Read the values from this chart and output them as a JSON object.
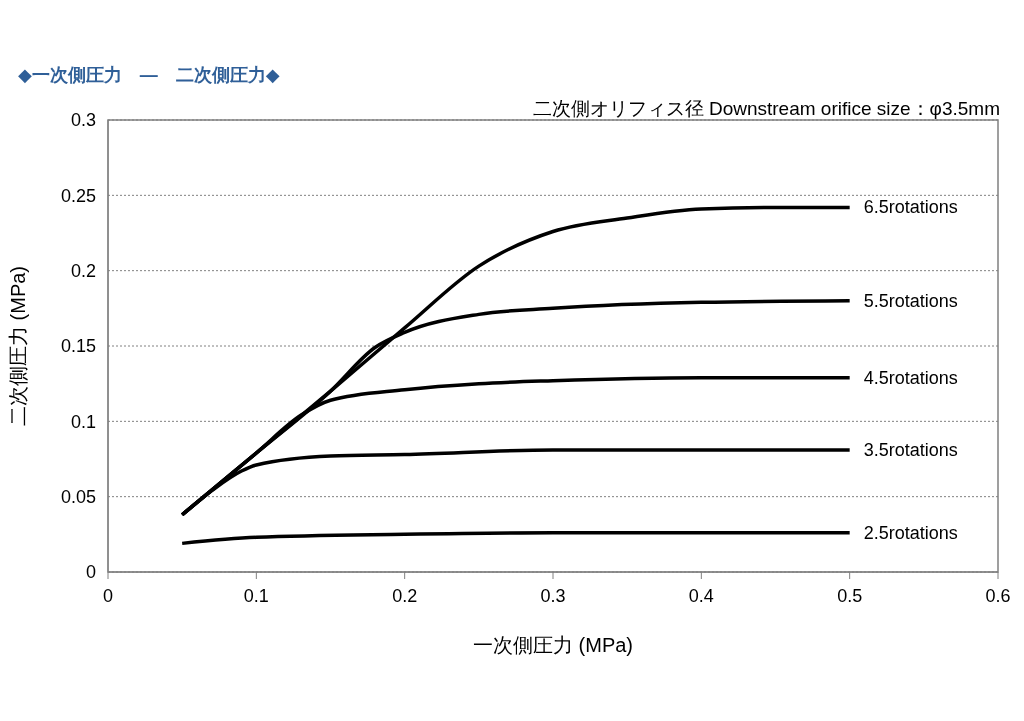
{
  "chart_data": {
    "type": "line",
    "title": "◆一次側圧力　―　二次側圧力◆",
    "subtitle": "二次側オリフィス径 Downstream orifice size：φ3.5mm",
    "xlabel": "一次側圧力 (MPa)",
    "ylabel": "二次側圧力 (MPa)",
    "xlim": [
      0,
      0.6
    ],
    "xticks": [
      0,
      0.1,
      0.2,
      0.3,
      0.4,
      0.5,
      0.6
    ],
    "ylim": [
      0,
      0.3
    ],
    "yticks": [
      0,
      0.05,
      0.1,
      0.15,
      0.2,
      0.25,
      0.3
    ],
    "grid": "y",
    "legend": false,
    "marker": "none",
    "line_style": "solid",
    "series": [
      {
        "name": "6.5rotations",
        "color": "#000000",
        "x": [
          0.05,
          0.1,
          0.15,
          0.2,
          0.25,
          0.3,
          0.35,
          0.4,
          0.45,
          0.5
        ],
        "values": [
          0.038,
          0.079,
          0.12,
          0.162,
          0.203,
          0.226,
          0.235,
          0.241,
          0.242,
          0.242
        ]
      },
      {
        "name": "5.5rotations",
        "color": "#000000",
        "x": [
          0.05,
          0.1,
          0.15,
          0.18,
          0.2,
          0.25,
          0.3,
          0.4,
          0.5
        ],
        "values": [
          0.038,
          0.079,
          0.12,
          0.149,
          0.159,
          0.171,
          0.175,
          0.179,
          0.18
        ]
      },
      {
        "name": "4.5rotations",
        "color": "#000000",
        "x": [
          0.05,
          0.1,
          0.13,
          0.15,
          0.2,
          0.25,
          0.3,
          0.4,
          0.5
        ],
        "values": [
          0.038,
          0.079,
          0.104,
          0.114,
          0.121,
          0.125,
          0.127,
          0.129,
          0.129
        ]
      },
      {
        "name": "3.5rotations",
        "color": "#000000",
        "x": [
          0.05,
          0.07,
          0.09,
          0.1,
          0.15,
          0.2,
          0.3,
          0.4,
          0.5
        ],
        "values": [
          0.038,
          0.054,
          0.067,
          0.071,
          0.077,
          0.078,
          0.081,
          0.081,
          0.081
        ]
      },
      {
        "name": "2.5rotations",
        "color": "#000000",
        "x": [
          0.05,
          0.1,
          0.2,
          0.3,
          0.4,
          0.5
        ],
        "values": [
          0.019,
          0.023,
          0.025,
          0.026,
          0.026,
          0.026
        ]
      }
    ]
  }
}
